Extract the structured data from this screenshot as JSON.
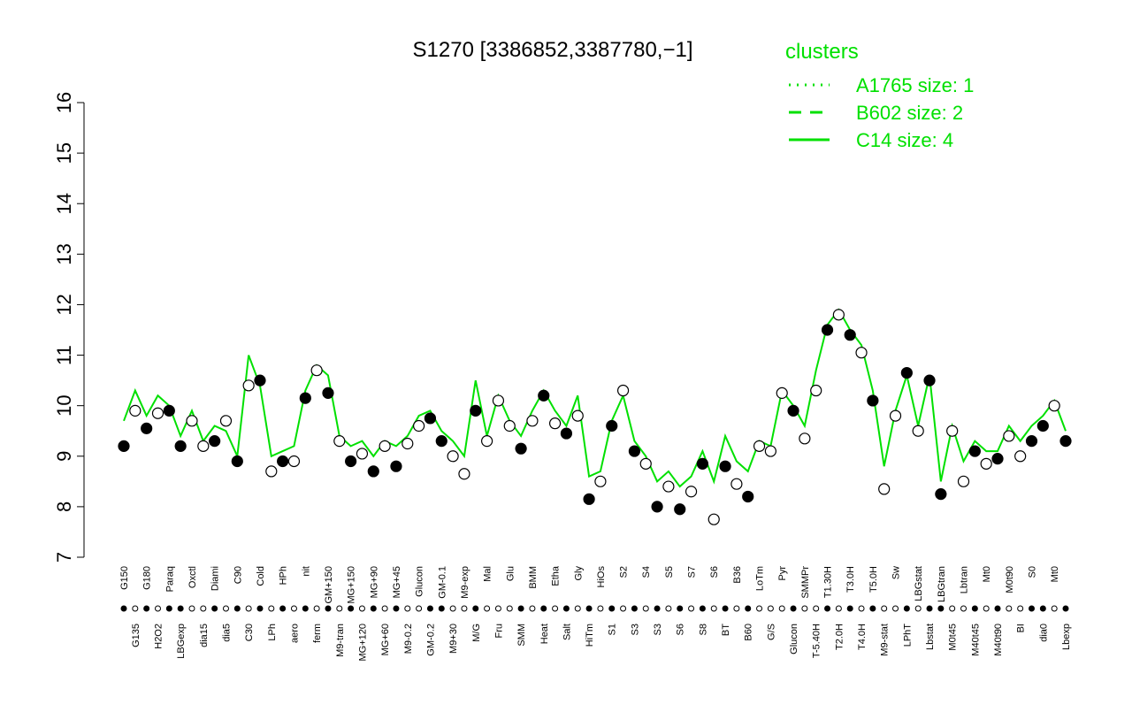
{
  "chart_data": {
    "type": "line",
    "title": "S1270 [3386852,3387780,−1]",
    "ylim": [
      7,
      16
    ],
    "yticks": [
      7,
      8,
      9,
      10,
      11,
      12,
      13,
      14,
      15,
      16
    ],
    "categories": [
      "G150",
      "G135",
      "G180",
      "H2O2",
      "Paraq",
      "LBGexp",
      "Oxctl",
      "dia15",
      "Diami",
      "dia5",
      "C90",
      "C30",
      "Cold",
      "LPh",
      "HPh",
      "aero",
      "nit",
      "ferm",
      "GM+150",
      "M9-tran",
      "MG+150",
      "MG+120",
      "MG+90",
      "MG+60",
      "MG+45",
      "M9-0.2",
      "Glucon",
      "GM-0.2",
      "GM-0.1",
      "M9+30",
      "M9-exp",
      "M/G",
      "Mal",
      "Fru",
      "Glu",
      "SMM",
      "BMM",
      "Heat",
      "Etha",
      "Salt",
      "Gly",
      "HiTm",
      "HiOs",
      "S1",
      "S2",
      "S3",
      "S4",
      "S3",
      "S5",
      "S6",
      "S7",
      "S8",
      "S6",
      "BT",
      "B36",
      "B60",
      "LoTm",
      "G/S",
      "Pyr",
      "Glucon",
      "SMMPr",
      "T-5.40H",
      "T1.30H",
      "T2.0H",
      "T3.0H",
      "T4.0H",
      "T5.0H",
      "M9-stat",
      "Sw",
      "LPhT",
      "LBGstat",
      "Lbstat",
      "LBGtran",
      "M0t45",
      "Lbtran",
      "M40t45",
      "Mt0",
      "M40t90",
      "M0t90",
      "BI",
      "S0",
      "dia0",
      "Mt0",
      "Lbexp"
    ],
    "values": [
      9.2,
      9.9,
      9.55,
      9.85,
      9.9,
      9.2,
      9.7,
      9.2,
      9.3,
      9.7,
      8.9,
      10.4,
      10.5,
      8.7,
      8.9,
      8.9,
      10.15,
      10.7,
      10.25,
      9.3,
      8.9,
      9.05,
      8.7,
      9.2,
      8.8,
      9.25,
      9.6,
      9.75,
      9.3,
      9.0,
      8.65,
      9.9,
      9.3,
      10.1,
      9.6,
      9.15,
      9.7,
      10.2,
      9.65,
      9.45,
      9.8,
      8.15,
      8.5,
      9.6,
      10.3,
      9.1,
      8.85,
      8.0,
      8.4,
      7.95,
      8.3,
      8.85,
      7.75,
      8.8,
      8.45,
      8.2,
      9.2,
      9.1,
      10.25,
      9.9,
      9.35,
      10.3,
      11.5,
      11.8,
      11.4,
      11.05,
      10.1,
      8.35,
      9.8,
      10.65,
      9.5,
      10.5,
      8.25,
      9.5,
      8.5,
      9.1,
      8.85,
      8.95,
      9.4,
      9.0,
      9.3,
      9.6,
      10.0,
      9.3
    ],
    "point_colors": [
      "#000",
      "#fff",
      "#000",
      "#fff",
      "#000",
      "#000",
      "#fff",
      "#fff",
      "#000",
      "#fff",
      "#000",
      "#fff",
      "#000",
      "#fff",
      "#000",
      "#fff",
      "#000",
      "#fff",
      "#000",
      "#fff",
      "#000",
      "#fff",
      "#000",
      "#fff",
      "#000",
      "#fff",
      "#fff",
      "#000",
      "#000",
      "#fff",
      "#fff",
      "#000",
      "#fff",
      "#fff",
      "#fff",
      "#000",
      "#fff",
      "#000",
      "#fff",
      "#000",
      "#fff",
      "#000",
      "#fff",
      "#000",
      "#fff",
      "#000",
      "#fff",
      "#000",
      "#fff",
      "#000",
      "#fff",
      "#000",
      "#fff",
      "#000",
      "#fff",
      "#000",
      "#fff",
      "#fff",
      "#fff",
      "#000",
      "#fff",
      "#fff",
      "#000",
      "#fff",
      "#000",
      "#fff",
      "#000",
      "#fff",
      "#fff",
      "#000",
      "#fff",
      "#000",
      "#000",
      "#fff",
      "#fff",
      "#000",
      "#fff",
      "#000",
      "#fff",
      "#fff",
      "#000",
      "#000",
      "#fff",
      "#000"
    ],
    "series": [
      {
        "name": "C14 size: 4",
        "color": "#00e000",
        "values": [
          9.7,
          10.3,
          9.8,
          10.2,
          10.0,
          9.4,
          9.9,
          9.3,
          9.6,
          9.5,
          9.0,
          11.0,
          10.4,
          9.0,
          9.1,
          9.2,
          10.3,
          10.8,
          10.6,
          9.4,
          9.2,
          9.3,
          9.0,
          9.3,
          9.2,
          9.4,
          9.8,
          9.9,
          9.5,
          9.3,
          9.0,
          10.5,
          9.4,
          10.2,
          9.7,
          9.4,
          9.9,
          10.3,
          9.9,
          9.6,
          10.2,
          8.6,
          8.7,
          9.7,
          10.2,
          9.3,
          9.0,
          8.5,
          8.7,
          8.4,
          8.6,
          9.1,
          8.5,
          9.4,
          8.9,
          8.7,
          9.3,
          9.2,
          10.3,
          10.0,
          9.6,
          10.7,
          11.6,
          11.9,
          11.5,
          11.2,
          10.3,
          8.8,
          9.9,
          10.6,
          9.6,
          10.6,
          8.5,
          9.6,
          8.9,
          9.3,
          9.1,
          9.1,
          9.6,
          9.3,
          9.6,
          9.8,
          10.1,
          9.5
        ]
      }
    ],
    "legend": {
      "title": "clusters",
      "entries": [
        {
          "name": "A1765 size: 1",
          "dash": "2,7"
        },
        {
          "name": "B602 size: 2",
          "dash": "14,10"
        },
        {
          "name": "C14 size: 4",
          "dash": "none"
        }
      ]
    }
  }
}
